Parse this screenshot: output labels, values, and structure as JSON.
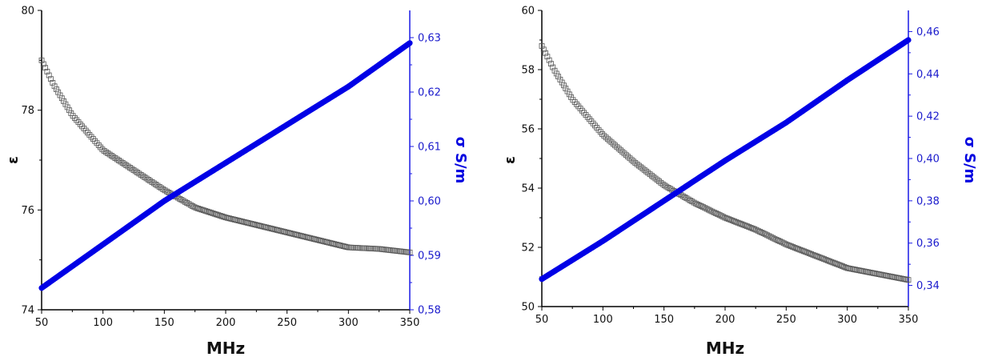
{
  "colors": {
    "left_axis": "#000000",
    "right_axis": "#1a1ae6",
    "blue_series": "#0000e6",
    "grey_series": "#555555"
  },
  "chart_data": [
    {
      "type": "scatter",
      "xlabel": "MHz",
      "ylabel_left": "ε",
      "ylabel_right": "σ S/m",
      "xlim": [
        50,
        350
      ],
      "ylim_left": [
        74,
        80
      ],
      "ylim_right": [
        0.58,
        0.635
      ],
      "x_ticks": [
        "50",
        "100",
        "150",
        "200",
        "250",
        "300",
        "350"
      ],
      "y_ticks_left": [
        "74",
        "76",
        "78",
        "80"
      ],
      "y_ticks_right": [
        "0,58",
        "0,59",
        "0,60",
        "0,61",
        "0,62",
        "0,63"
      ],
      "grid": false,
      "series": [
        {
          "axis": "left",
          "marker": "open-square",
          "color": "#555555",
          "x": [
            50,
            60,
            75,
            100,
            125,
            150,
            175,
            200,
            225,
            250,
            275,
            300,
            325,
            350
          ],
          "y": [
            79.0,
            78.5,
            77.9,
            77.2,
            76.8,
            76.4,
            76.05,
            75.85,
            75.7,
            75.55,
            75.4,
            75.25,
            75.22,
            75.15
          ]
        },
        {
          "axis": "right",
          "marker": "filled-circle",
          "color": "#0000e6",
          "x": [
            50,
            100,
            150,
            200,
            250,
            300,
            350
          ],
          "y": [
            0.584,
            0.592,
            0.6,
            0.607,
            0.614,
            0.621,
            0.629
          ]
        }
      ]
    },
    {
      "type": "scatter",
      "xlabel": "MHz",
      "ylabel_left": "ε",
      "ylabel_right": "σ S/m",
      "xlim": [
        50,
        350
      ],
      "ylim_left": [
        50,
        60
      ],
      "ylim_right": [
        0.33,
        0.47
      ],
      "x_ticks": [
        "50",
        "100",
        "150",
        "200",
        "250",
        "300",
        "350"
      ],
      "y_ticks_left": [
        "50",
        "52",
        "54",
        "56",
        "58",
        "60"
      ],
      "y_ticks_right": [
        "0,34",
        "0,36",
        "0,38",
        "0,40",
        "0,42",
        "0,44",
        "0,46"
      ],
      "grid": false,
      "series": [
        {
          "axis": "left",
          "marker": "open-square",
          "color": "#555555",
          "x": [
            50,
            60,
            75,
            100,
            125,
            150,
            175,
            200,
            225,
            250,
            275,
            300,
            325,
            350
          ],
          "y": [
            58.8,
            58.0,
            57.0,
            55.8,
            54.9,
            54.1,
            53.5,
            53.0,
            52.6,
            52.1,
            51.7,
            51.3,
            51.1,
            50.9
          ]
        },
        {
          "axis": "right",
          "marker": "filled-circle",
          "color": "#0000e6",
          "x": [
            50,
            100,
            150,
            200,
            250,
            300,
            350
          ],
          "y": [
            0.343,
            0.361,
            0.38,
            0.399,
            0.417,
            0.437,
            0.456
          ]
        }
      ]
    }
  ]
}
